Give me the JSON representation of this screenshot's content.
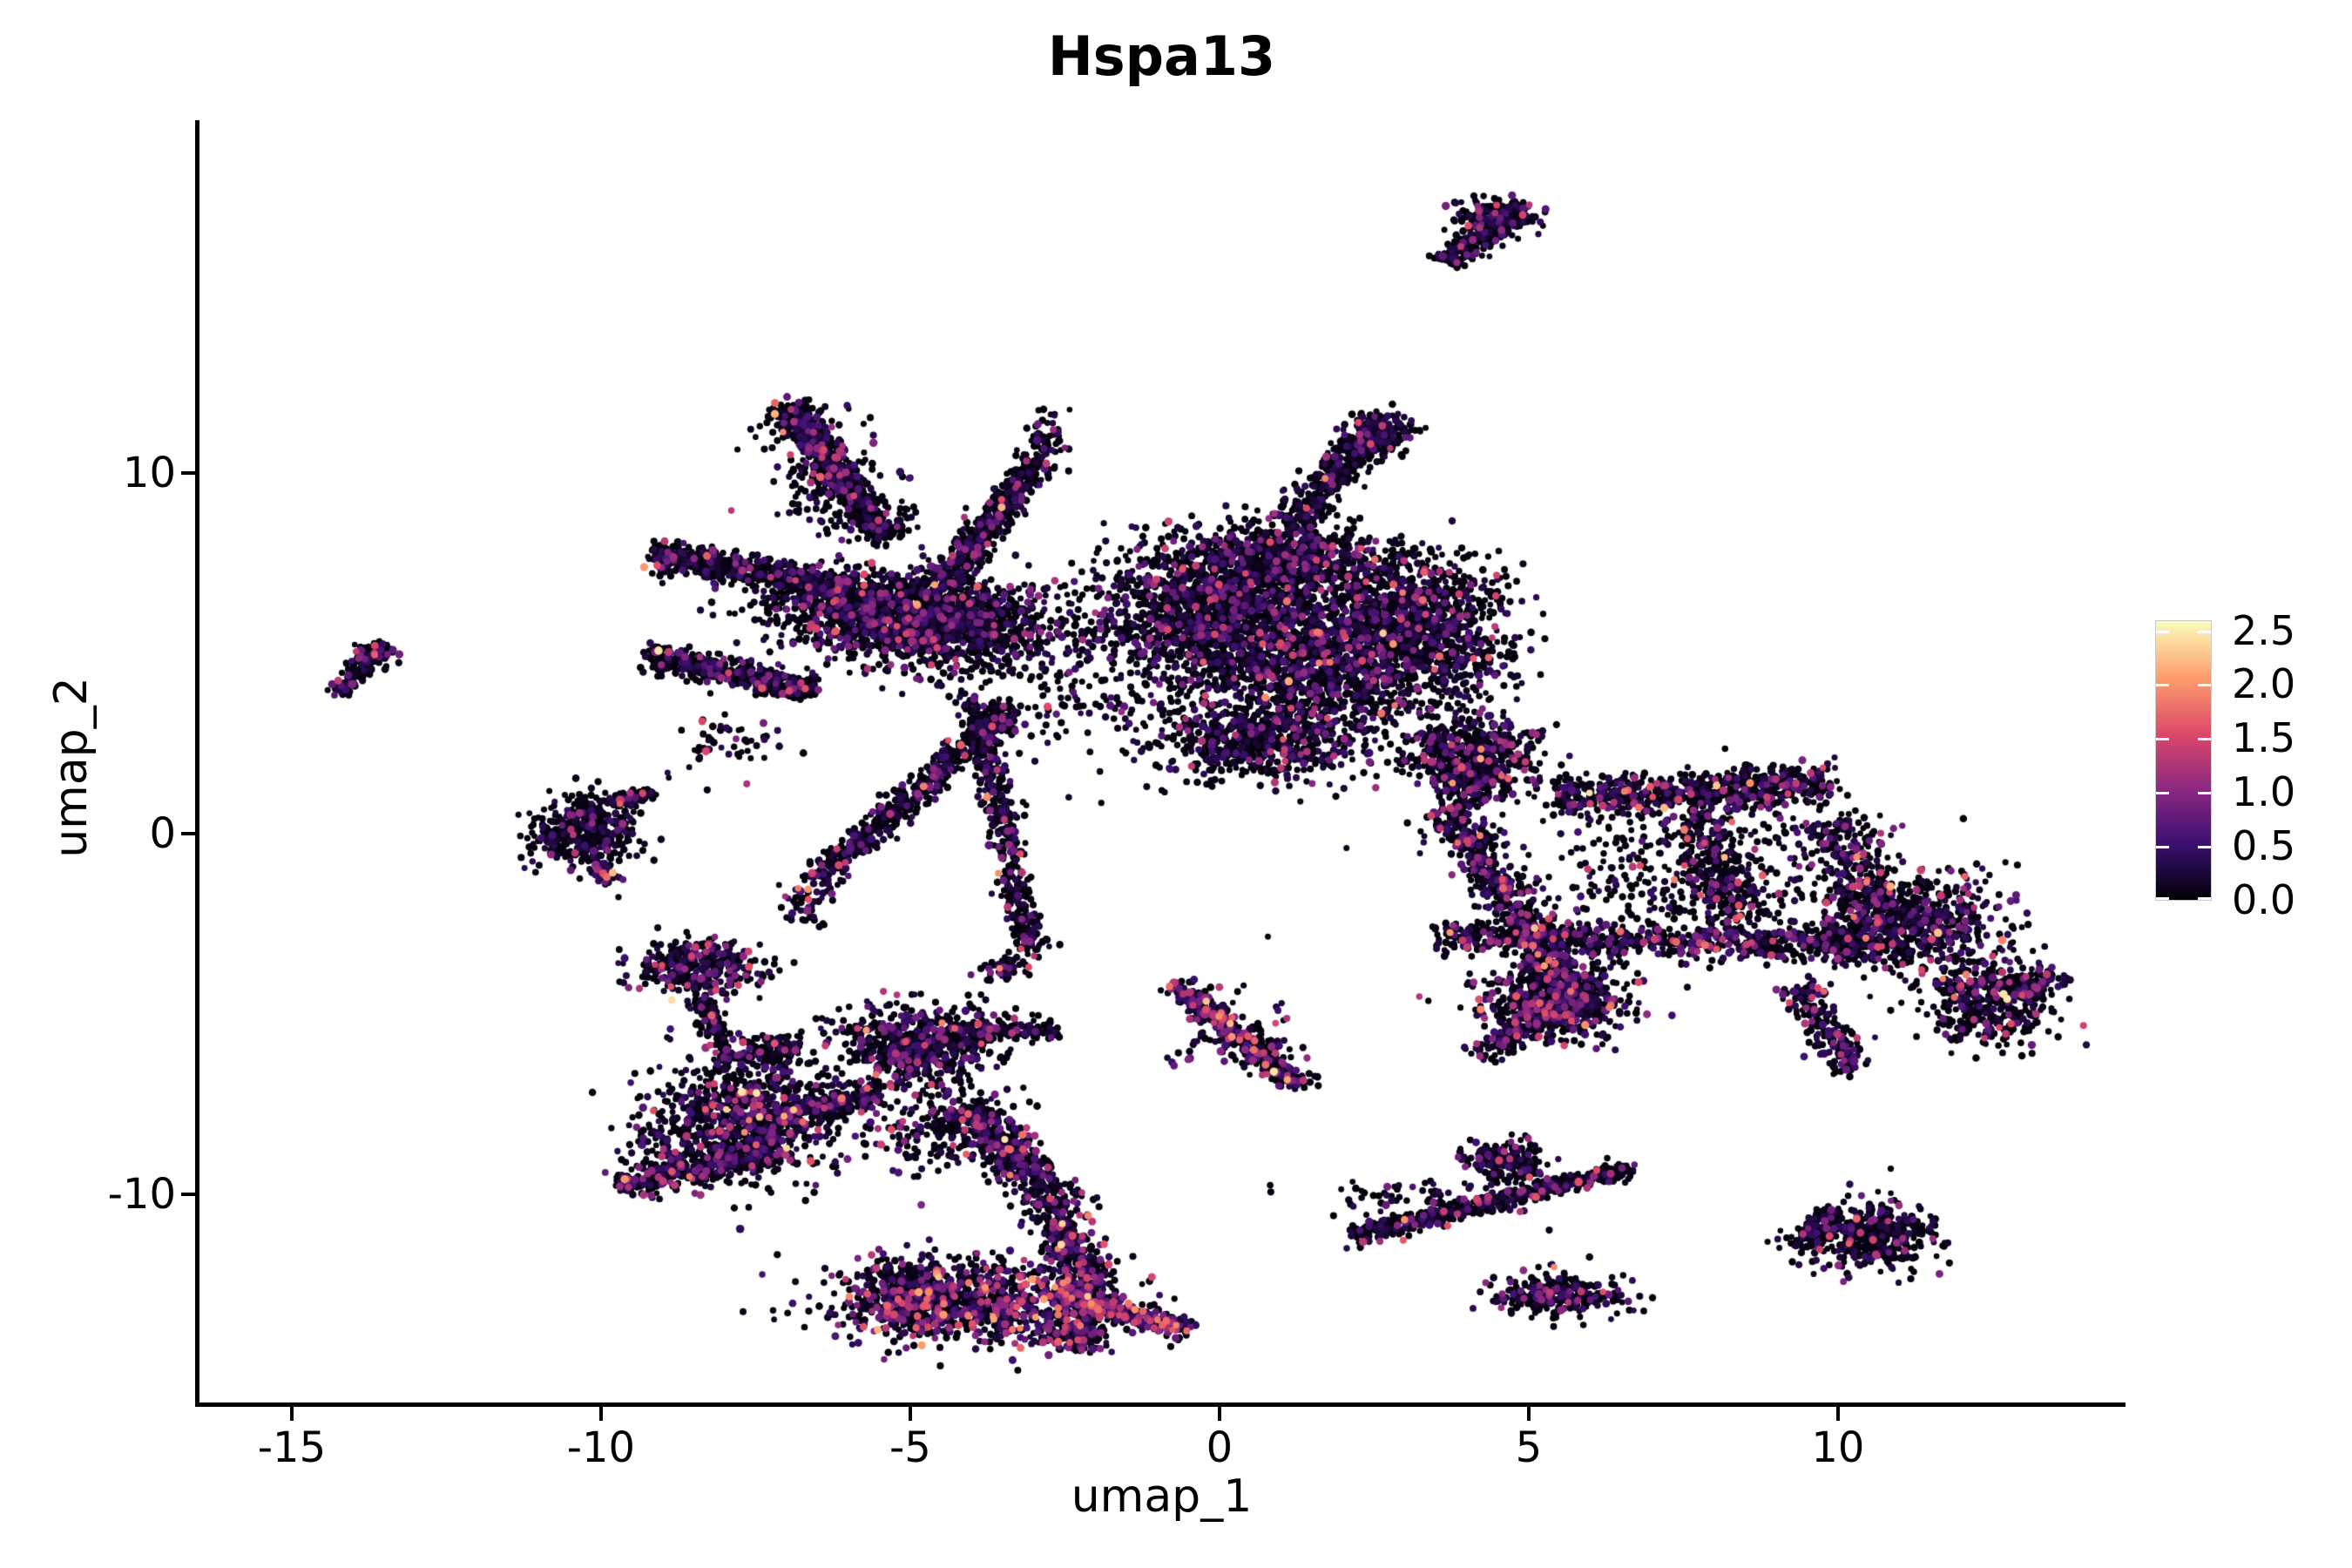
{
  "figure": {
    "title": "Hspa13"
  },
  "chart_data": {
    "type": "scatter",
    "title": "Hspa13",
    "xlabel": "umap_1",
    "ylabel": "umap_2",
    "x_ticks": [
      -15,
      -10,
      -5,
      0,
      5,
      10
    ],
    "y_ticks": [
      -10,
      0,
      10
    ],
    "x_range": [
      -16.52,
      14.65
    ],
    "y_range": [
      -15.77,
      19.78
    ],
    "grid": false,
    "point_base_color": "#000004",
    "legend": {
      "position": "right",
      "ticks": [
        0.0,
        0.5,
        1.0,
        1.5,
        2.0,
        2.5
      ],
      "tick_labels": [
        "0.0",
        "0.5",
        "1.0",
        "1.5",
        "2.0",
        "2.5"
      ],
      "vmax": 2.585,
      "colormap": "magma",
      "stops": [
        "#000004",
        "#3B0F70",
        "#8C2981",
        "#DE4968",
        "#FE9F6D",
        "#FCFDBF"
      ]
    },
    "clusters": [
      {
        "id": "top-comet-tail",
        "s": "band",
        "a": [
          3.66,
          15.82
        ],
        "b": [
          4.79,
          17.27
        ],
        "sd": 0.16,
        "n": 240,
        "p": 0.1,
        "w": 0.3
      },
      {
        "id": "top-comet-head",
        "s": "blob",
        "c": [
          4.48,
          17.13
        ],
        "sx": 0.3,
        "sy": 0.25,
        "n": 190,
        "p": 0.1,
        "w": 0.3
      },
      {
        "id": "far-left-comet",
        "s": "band",
        "a": [
          -14.27,
          3.86
        ],
        "b": [
          -13.62,
          5.07
        ],
        "sd": 0.1,
        "n": 110,
        "p": 0.18,
        "w": 0.2
      },
      {
        "id": "far-left-head",
        "s": "blob",
        "c": [
          -13.69,
          4.95
        ],
        "sx": 0.16,
        "sy": 0.16,
        "n": 80,
        "p": 0.18,
        "w": 0.2
      },
      {
        "id": "left-blob",
        "s": "blob",
        "c": [
          -10.28,
          0.05
        ],
        "sx": 0.45,
        "sy": 0.5,
        "n": 420,
        "p": 0.12,
        "w": 0.3
      },
      {
        "id": "left-blob-arm",
        "s": "band",
        "a": [
          -9.86,
          0.89
        ],
        "b": [
          -9.15,
          1.09
        ],
        "sd": 0.1,
        "n": 80,
        "p": 0.12,
        "w": 0.3
      },
      {
        "id": "left-blob-tail",
        "s": "band",
        "a": [
          -10.0,
          -0.92
        ],
        "b": [
          -9.86,
          -1.4
        ],
        "sd": 0.08,
        "n": 45,
        "p": 0.2,
        "w": 0.9
      },
      {
        "id": "a-top-streak",
        "s": "band",
        "a": [
          -7.01,
          11.88
        ],
        "b": [
          -5.37,
          8.19
        ],
        "sd": 0.17,
        "n": 650,
        "p": 0.12,
        "w": 0.3
      },
      {
        "id": "a-top-streak-halo",
        "s": "band",
        "a": [
          -7.01,
          11.88
        ],
        "b": [
          -5.37,
          8.19
        ],
        "sd": 0.42,
        "n": 150,
        "p": 0.12,
        "w": 0.3
      },
      {
        "id": "a-claw-upper",
        "s": "band",
        "a": [
          -9.17,
          7.75
        ],
        "b": [
          -5.94,
          6.79
        ],
        "sd": 0.2,
        "n": 600,
        "p": 0.12,
        "w": 0.3
      },
      {
        "id": "a-claw-lower",
        "s": "band",
        "a": [
          -9.23,
          4.95
        ],
        "b": [
          -6.58,
          3.96
        ],
        "sd": 0.18,
        "n": 480,
        "p": 0.12,
        "w": 0.3
      },
      {
        "id": "a-core-1",
        "s": "blob",
        "c": [
          -5.63,
          6.21
        ],
        "sx": 0.85,
        "sy": 0.6,
        "n": 950,
        "p": 0.15,
        "w": 0.3
      },
      {
        "id": "a-core-2",
        "s": "blob",
        "c": [
          -4.37,
          5.72
        ],
        "sx": 0.8,
        "sy": 0.65,
        "n": 900,
        "p": 0.15,
        "w": 0.3
      },
      {
        "id": "a-wing-up",
        "s": "band",
        "a": [
          -4.48,
          6.91
        ],
        "b": [
          -2.93,
          10.43
        ],
        "sd": 0.16,
        "n": 520,
        "p": 0.12,
        "w": 0.3
      },
      {
        "id": "a-wing-up-tip",
        "s": "blob",
        "c": [
          -2.77,
          10.99
        ],
        "sx": 0.15,
        "sy": 0.3,
        "n": 60,
        "p": 0.12,
        "w": 0.3
      },
      {
        "id": "a-wing-down",
        "s": "band",
        "a": [
          -3.28,
          3.53
        ],
        "b": [
          -6.45,
          -1.14
        ],
        "sd": 0.16,
        "n": 520,
        "p": 0.12,
        "w": 0.3
      },
      {
        "id": "a-wing-down-tail",
        "s": "band",
        "a": [
          -6.45,
          -1.14
        ],
        "b": [
          -6.82,
          -2.44
        ],
        "sd": 0.2,
        "n": 70,
        "p": 0.15,
        "w": 0.4
      },
      {
        "id": "a-spike-down",
        "s": "band",
        "a": [
          -3.97,
          3.65
        ],
        "b": [
          -3.03,
          -3.29
        ],
        "sd": 0.14,
        "n": 480,
        "p": 0.13,
        "w": 0.35
      },
      {
        "id": "a-spike-tip",
        "s": "blob",
        "c": [
          -3.44,
          -3.72
        ],
        "sx": 0.2,
        "sy": 0.2,
        "n": 50,
        "p": 0.2,
        "w": 0.4
      },
      {
        "id": "a-b-bridge",
        "s": "blob",
        "c": [
          -2.25,
          4.28
        ],
        "sx": 1.1,
        "sy": 1.3,
        "n": 240,
        "p": 0.12,
        "w": 0.3
      },
      {
        "id": "a-under-claw",
        "s": "blob",
        "c": [
          -8.03,
          2.59
        ],
        "sx": 0.5,
        "sy": 0.45,
        "n": 55,
        "p": 0.12,
        "w": 0.3
      },
      {
        "id": "a-mid-scatter",
        "s": "blob",
        "c": [
          -6.34,
          9.59
        ],
        "sx": 0.45,
        "sy": 0.7,
        "n": 85,
        "p": 0.12,
        "w": 0.3
      },
      {
        "id": "b-main-1",
        "s": "blob",
        "c": [
          -0.14,
          6.21
        ],
        "sx": 1.0,
        "sy": 0.9,
        "n": 1350,
        "p": 0.13,
        "w": 0.35
      },
      {
        "id": "b-main-2",
        "s": "blob",
        "c": [
          1.69,
          4.76
        ],
        "sx": 1.1,
        "sy": 0.9,
        "n": 1450,
        "p": 0.13,
        "w": 0.35
      },
      {
        "id": "b-main-3",
        "s": "blob",
        "c": [
          3.1,
          6.21
        ],
        "sx": 0.7,
        "sy": 0.8,
        "n": 800,
        "p": 0.13,
        "w": 0.35
      },
      {
        "id": "b-main-4",
        "s": "blob",
        "c": [
          0.7,
          2.58
        ],
        "sx": 0.9,
        "sy": 0.55,
        "n": 650,
        "p": 0.13,
        "w": 0.35
      },
      {
        "id": "b-main-5",
        "s": "blob",
        "c": [
          1.13,
          7.66
        ],
        "sx": 0.85,
        "sy": 0.5,
        "n": 700,
        "p": 0.13,
        "w": 0.35
      },
      {
        "id": "b-thumb",
        "s": "band",
        "a": [
          1.13,
          8.62
        ],
        "b": [
          2.68,
          11.52
        ],
        "sd": 0.2,
        "n": 430,
        "p": 0.11,
        "w": 0.3
      },
      {
        "id": "b-thumb-head",
        "s": "blob",
        "c": [
          2.54,
          11.04
        ],
        "sx": 0.3,
        "sy": 0.3,
        "n": 140,
        "p": 0.11,
        "w": 0.3
      },
      {
        "id": "b-neck",
        "s": "band",
        "a": [
          3.38,
          2.83
        ],
        "b": [
          4.23,
          0.89
        ],
        "sd": 0.25,
        "n": 200,
        "p": 0.15,
        "w": 0.45
      },
      {
        "id": "b-right-fringe",
        "s": "blob",
        "c": [
          3.94,
          4.76
        ],
        "sx": 0.5,
        "sy": 0.85,
        "n": 170,
        "p": 0.13,
        "w": 0.35
      },
      {
        "id": "c-neck-knot",
        "s": "blob",
        "c": [
          4.23,
          2.1
        ],
        "sx": 0.55,
        "sy": 0.55,
        "n": 400,
        "p": 0.18,
        "w": 0.5
      },
      {
        "id": "c-top-band",
        "s": "band",
        "a": [
          5.49,
          0.97
        ],
        "b": [
          9.93,
          1.38
        ],
        "sd": 0.28,
        "n": 680,
        "p": 0.2,
        "w": 0.55
      },
      {
        "id": "c-left-diag",
        "s": "band",
        "a": [
          3.66,
          0.65
        ],
        "b": [
          5.63,
          -4.18
        ],
        "sd": 0.24,
        "n": 560,
        "p": 0.25,
        "w": 0.7
      },
      {
        "id": "c-fan",
        "s": "blob",
        "c": [
          5.49,
          -4.66
        ],
        "sx": 0.6,
        "sy": 0.5,
        "n": 600,
        "p": 0.2,
        "w": 0.55
      },
      {
        "id": "c-fan-tip",
        "s": "band",
        "a": [
          4.23,
          -6.16
        ],
        "b": [
          5.92,
          -4.3
        ],
        "sd": 0.18,
        "n": 240,
        "p": 0.2,
        "w": 0.55
      },
      {
        "id": "c-mid-band",
        "s": "band",
        "a": [
          3.52,
          -2.85
        ],
        "b": [
          10.56,
          -3.09
        ],
        "sd": 0.22,
        "n": 720,
        "p": 0.22,
        "w": 0.55
      },
      {
        "id": "c-right-mass",
        "s": "blob",
        "c": [
          11.13,
          -2.49
        ],
        "sx": 0.8,
        "sy": 0.7,
        "n": 680,
        "p": 0.18,
        "w": 0.5
      },
      {
        "id": "c-right-lobe",
        "s": "blob",
        "c": [
          12.39,
          -4.66
        ],
        "sx": 0.5,
        "sy": 0.6,
        "n": 380,
        "p": 0.18,
        "w": 0.5
      },
      {
        "id": "c-right-tip",
        "s": "blob",
        "c": [
          13.1,
          -4.18
        ],
        "sx": 0.3,
        "sy": 0.25,
        "n": 110,
        "p": 0.18,
        "w": 0.5
      },
      {
        "id": "c-vert-1",
        "s": "band",
        "a": [
          7.75,
          0.65
        ],
        "b": [
          8.31,
          -2.73
        ],
        "sd": 0.3,
        "n": 280,
        "p": 0.2,
        "w": 0.5
      },
      {
        "id": "c-vert-2",
        "s": "band",
        "a": [
          9.86,
          0.41
        ],
        "b": [
          10.7,
          -2.25
        ],
        "sd": 0.3,
        "n": 250,
        "p": 0.2,
        "w": 0.5
      },
      {
        "id": "c-sparse-fill",
        "s": "blob",
        "c": [
          7.75,
          -1.04
        ],
        "sx": 1.7,
        "sy": 0.95,
        "n": 400,
        "p": 0.15,
        "w": 0.5
      },
      {
        "id": "c-bottom-spur",
        "s": "band",
        "a": [
          9.3,
          -4.18
        ],
        "b": [
          10.28,
          -6.59
        ],
        "sd": 0.2,
        "n": 200,
        "p": 0.18,
        "w": 0.5
      },
      {
        "id": "f-top-blob",
        "s": "blob",
        "c": [
          -8.45,
          -3.7
        ],
        "sx": 0.5,
        "sy": 0.38,
        "n": 360,
        "p": 0.2,
        "w": 0.5
      },
      {
        "id": "f-top-tail",
        "s": "band",
        "a": [
          -8.45,
          -4.54
        ],
        "b": [
          -7.89,
          -6.23
        ],
        "sd": 0.12,
        "n": 80,
        "p": 0.12,
        "w": 0.4
      },
      {
        "id": "f-knot",
        "s": "blob",
        "c": [
          -7.25,
          -5.99
        ],
        "sx": 0.3,
        "sy": 0.22,
        "n": 130,
        "p": 0.12,
        "w": 0.4
      },
      {
        "id": "f-left-arm",
        "s": "band",
        "a": [
          -9.68,
          -9.78
        ],
        "b": [
          -7.04,
          -8.77
        ],
        "sd": 0.2,
        "n": 400,
        "p": 0.18,
        "w": 0.5
      },
      {
        "id": "f-main-blob",
        "s": "blob",
        "c": [
          -7.68,
          -7.92
        ],
        "sx": 0.75,
        "sy": 0.8,
        "n": 850,
        "p": 0.22,
        "w": 0.5
      },
      {
        "id": "f-bridge",
        "s": "band",
        "a": [
          -7.18,
          -7.8
        ],
        "b": [
          -5.49,
          -7.2
        ],
        "sd": 0.2,
        "n": 280,
        "p": 0.15,
        "w": 0.4
      },
      {
        "id": "f-center-top",
        "s": "blob",
        "c": [
          -4.93,
          -5.87
        ],
        "sx": 0.6,
        "sy": 0.55,
        "n": 620,
        "p": 0.18,
        "w": 0.45
      },
      {
        "id": "f-center-arm",
        "s": "band",
        "a": [
          -4.23,
          -5.51
        ],
        "b": [
          -2.61,
          -5.39
        ],
        "sd": 0.15,
        "n": 150,
        "p": 0.12,
        "w": 0.4
      },
      {
        "id": "f-crescent-1",
        "s": "band",
        "a": [
          -4.15,
          -7.56
        ],
        "b": [
          -2.89,
          -9.73
        ],
        "sd": 0.26,
        "n": 380,
        "p": 0.25,
        "w": 0.6
      },
      {
        "id": "f-crescent-2",
        "s": "band",
        "a": [
          -2.89,
          -9.73
        ],
        "b": [
          -2.11,
          -12.39
        ],
        "sd": 0.26,
        "n": 330,
        "p": 0.28,
        "w": 0.6
      },
      {
        "id": "f-crescent-3",
        "s": "band",
        "a": [
          -2.11,
          -12.39
        ],
        "b": [
          -2.39,
          -14.32
        ],
        "sd": 0.25,
        "n": 240,
        "p": 0.28,
        "w": 0.6
      },
      {
        "id": "f-bottom-mass",
        "s": "blob",
        "c": [
          -4.01,
          -13.0
        ],
        "sx": 1.05,
        "sy": 0.6,
        "n": 850,
        "p": 0.32,
        "w": 0.7
      },
      {
        "id": "f-bottom-left",
        "s": "blob",
        "c": [
          -5.07,
          -12.8
        ],
        "sx": 0.45,
        "sy": 0.5,
        "n": 280,
        "p": 0.28,
        "w": 0.6
      },
      {
        "id": "f-bottom-tail",
        "s": "band",
        "a": [
          -2.75,
          -12.71
        ],
        "b": [
          -0.48,
          -13.77
        ],
        "sd": 0.16,
        "n": 280,
        "p": 0.4,
        "w": 0.8
      },
      {
        "id": "f-left-fringe",
        "s": "blob",
        "c": [
          -9.01,
          -8.77
        ],
        "sx": 0.35,
        "sy": 0.5,
        "n": 65,
        "p": 0.12,
        "w": 0.4
      },
      {
        "id": "f-inner-scatter",
        "s": "blob",
        "c": [
          -4.51,
          -8.29
        ],
        "sx": 0.55,
        "sy": 0.6,
        "n": 190,
        "p": 0.15,
        "w": 0.4
      },
      {
        "id": "f-dots-trail",
        "s": "band",
        "a": [
          -8.31,
          -4.66
        ],
        "b": [
          -7.89,
          -6.59
        ],
        "sd": 0.1,
        "n": 55,
        "p": 0.12,
        "w": 0.4
      },
      {
        "id": "g-slant-line",
        "s": "band",
        "a": [
          -0.77,
          -4.13
        ],
        "b": [
          1.34,
          -7.03
        ],
        "sd": 0.15,
        "n": 400,
        "p": 0.3,
        "w": 0.7
      },
      {
        "id": "g-halo",
        "s": "blob",
        "c": [
          0.28,
          -5.58
        ],
        "sx": 0.5,
        "sy": 0.6,
        "n": 80,
        "p": 0.2,
        "w": 0.5
      },
      {
        "id": "h-streak",
        "s": "band",
        "a": [
          2.14,
          -11.18
        ],
        "b": [
          6.59,
          -9.3
        ],
        "sd": 0.13,
        "n": 500,
        "p": 0.12,
        "w": 0.4
      },
      {
        "id": "h-knot",
        "s": "blob",
        "c": [
          4.58,
          -9.13
        ],
        "sx": 0.35,
        "sy": 0.28,
        "n": 190,
        "p": 0.12,
        "w": 0.4
      },
      {
        "id": "h-sparse",
        "s": "blob",
        "c": [
          3.0,
          -10.19
        ],
        "sx": 0.8,
        "sy": 0.4,
        "n": 70,
        "p": 0.12,
        "w": 0.4
      },
      {
        "id": "i-blob",
        "s": "blob",
        "c": [
          5.49,
          -12.8
        ],
        "sx": 0.5,
        "sy": 0.3,
        "n": 290,
        "p": 0.15,
        "w": 0.45
      },
      {
        "id": "j-blob",
        "s": "blob",
        "c": [
          10.49,
          -11.18
        ],
        "sx": 0.55,
        "sy": 0.45,
        "n": 430,
        "p": 0.12,
        "w": 0.45
      },
      {
        "id": "j-tail",
        "s": "band",
        "a": [
          9.3,
          -11.38
        ],
        "b": [
          10.0,
          -10.46
        ],
        "sd": 0.1,
        "n": 80,
        "p": 0.12,
        "w": 0.45
      }
    ]
  }
}
